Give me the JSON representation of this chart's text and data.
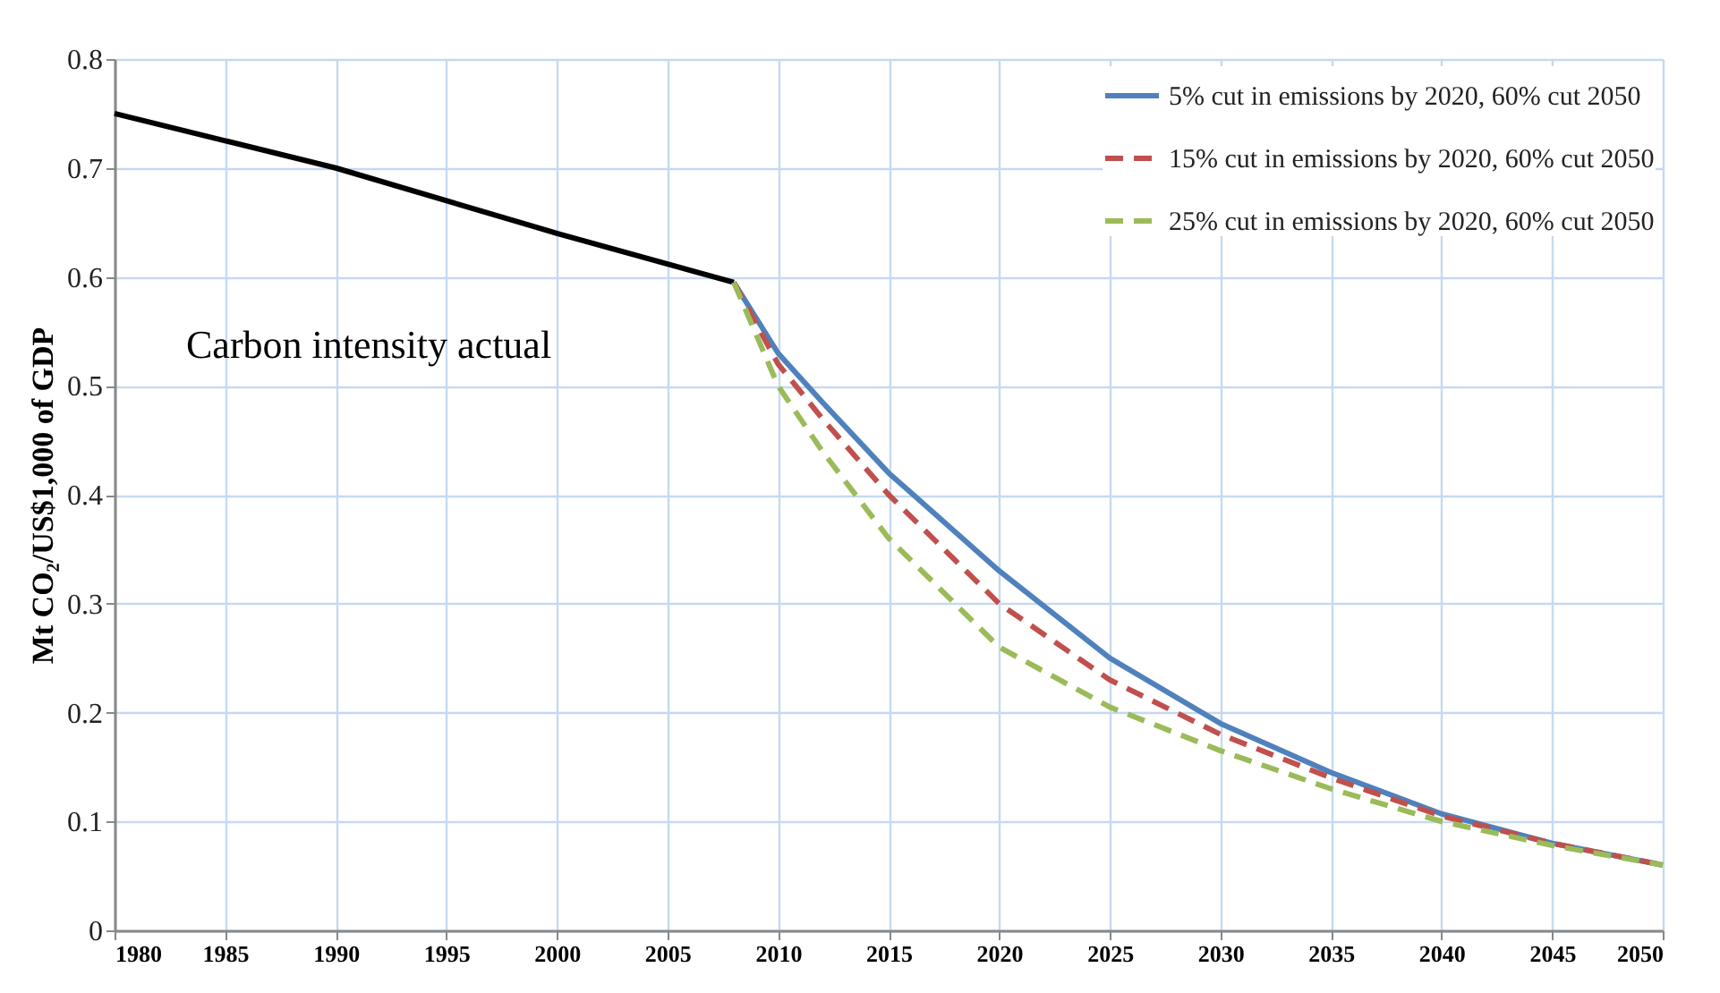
{
  "chart_data": {
    "type": "line",
    "ylabel": "Mt CO₂/US$1,000 of GDP",
    "xlim": [
      1980,
      2050
    ],
    "xticks": [
      1980,
      1985,
      1990,
      1995,
      2000,
      2005,
      2010,
      2015,
      2020,
      2025,
      2030,
      2035,
      2040,
      2045,
      2050
    ],
    "ylim": [
      0,
      0.8
    ],
    "yticks": [
      0,
      {
        "value": 0.1,
        "label": "0.1"
      },
      {
        "value": 0.2,
        "label": "0.2"
      },
      {
        "value": 0.3,
        "label": "0.3"
      },
      {
        "value": 0.4,
        "label": "0.4"
      },
      {
        "value": 0.5,
        "label": "0.5"
      },
      {
        "value": 0.6,
        "label": "0.6"
      },
      {
        "value": 0.7,
        "label": "0.7"
      },
      {
        "value": 0.8,
        "label": "0.8"
      }
    ],
    "grid": true,
    "legend": "top right",
    "marker": "none",
    "annotations": [
      "Carbon intensity actual"
    ],
    "series": [
      {
        "color": "#000000",
        "line_style": "solid",
        "x": [
          1980,
          1985,
          1990,
          2000,
          2008
        ],
        "values": [
          0.75,
          0.725,
          0.7,
          0.64,
          0.595
        ]
      },
      {
        "name": "5% cut in emissions by 2020, 60% cut 2050",
        "color": "#4f81bd",
        "line_style": "solid",
        "x": [
          2008,
          2010,
          2012,
          2015,
          2020,
          2025,
          2030,
          2035,
          2040,
          2045,
          2050
        ],
        "values": [
          0.595,
          0.53,
          0.485,
          0.42,
          0.33,
          0.25,
          0.19,
          0.145,
          0.107,
          0.08,
          0.06
        ]
      },
      {
        "name": "15% cut in emissions by 2020, 60% cut 2050",
        "color": "#c0504d",
        "line_style": "dashed",
        "x": [
          2008,
          2010,
          2012,
          2015,
          2020,
          2025,
          2030,
          2035,
          2040,
          2045,
          2050
        ],
        "values": [
          0.595,
          0.52,
          0.47,
          0.4,
          0.3,
          0.23,
          0.18,
          0.14,
          0.105,
          0.08,
          0.06
        ]
      },
      {
        "name": "25% cut in emissions by 2020, 60% cut 2050",
        "color": "#9bbb59",
        "line_style": "dashed",
        "x": [
          2008,
          2010,
          2012,
          2015,
          2020,
          2025,
          2030,
          2035,
          2040,
          2045,
          2050
        ],
        "values": [
          0.595,
          0.5,
          0.44,
          0.36,
          0.26,
          0.205,
          0.165,
          0.13,
          0.1,
          0.078,
          0.06
        ]
      }
    ]
  }
}
